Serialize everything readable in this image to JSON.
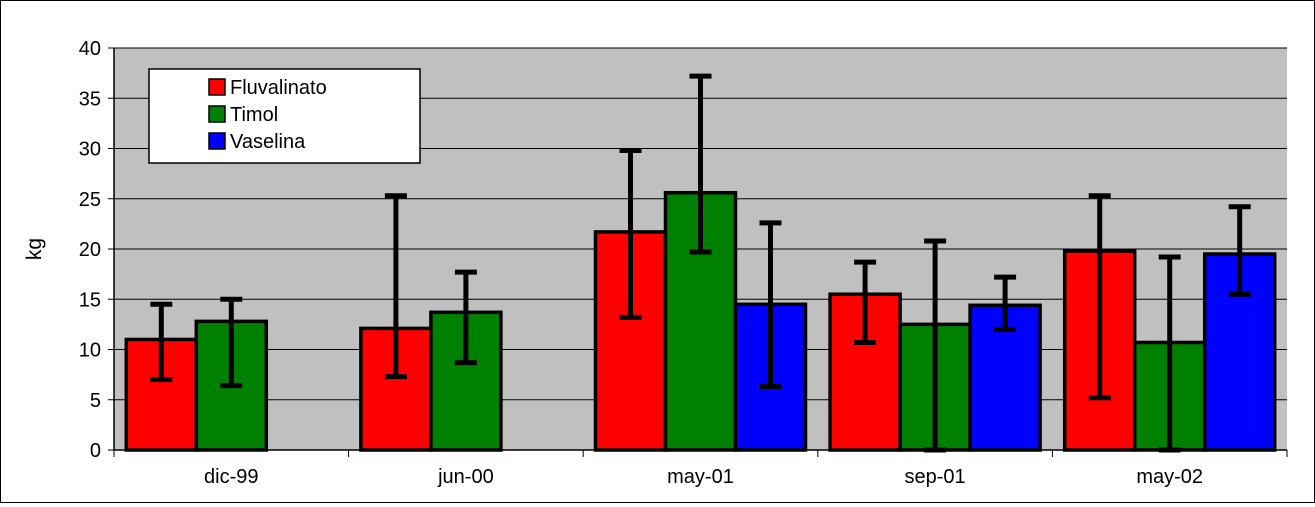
{
  "chart_data": {
    "type": "bar",
    "ylabel": "kg",
    "ylim": [
      0,
      40
    ],
    "yticks": [
      0,
      5,
      10,
      15,
      20,
      25,
      30,
      35,
      40
    ],
    "grid": true,
    "legend_position": "top-left",
    "categories": [
      "dic-99",
      "jun-00",
      "may-01",
      "sep-01",
      "may-02"
    ],
    "series": [
      {
        "name": "Fluvalinato",
        "color": "#ff0000",
        "values": [
          11.0,
          12.1,
          21.7,
          15.5,
          19.8
        ],
        "err_low": [
          7.0,
          7.3,
          13.2,
          10.7,
          5.2
        ],
        "err_high": [
          14.5,
          25.3,
          29.8,
          18.7,
          25.3
        ]
      },
      {
        "name": "Timol",
        "color": "#008000",
        "values": [
          12.8,
          13.7,
          25.6,
          12.5,
          10.7
        ],
        "err_low": [
          6.4,
          8.7,
          19.7,
          0.0,
          0.0
        ],
        "err_high": [
          15.0,
          17.7,
          37.2,
          20.8,
          19.2
        ]
      },
      {
        "name": "Vaselina",
        "color": "#0000ff",
        "values": [
          null,
          null,
          14.5,
          14.4,
          19.5
        ],
        "err_low": [
          null,
          null,
          6.3,
          12.0,
          15.5
        ],
        "err_high": [
          null,
          null,
          22.6,
          17.2,
          24.2
        ]
      }
    ]
  }
}
